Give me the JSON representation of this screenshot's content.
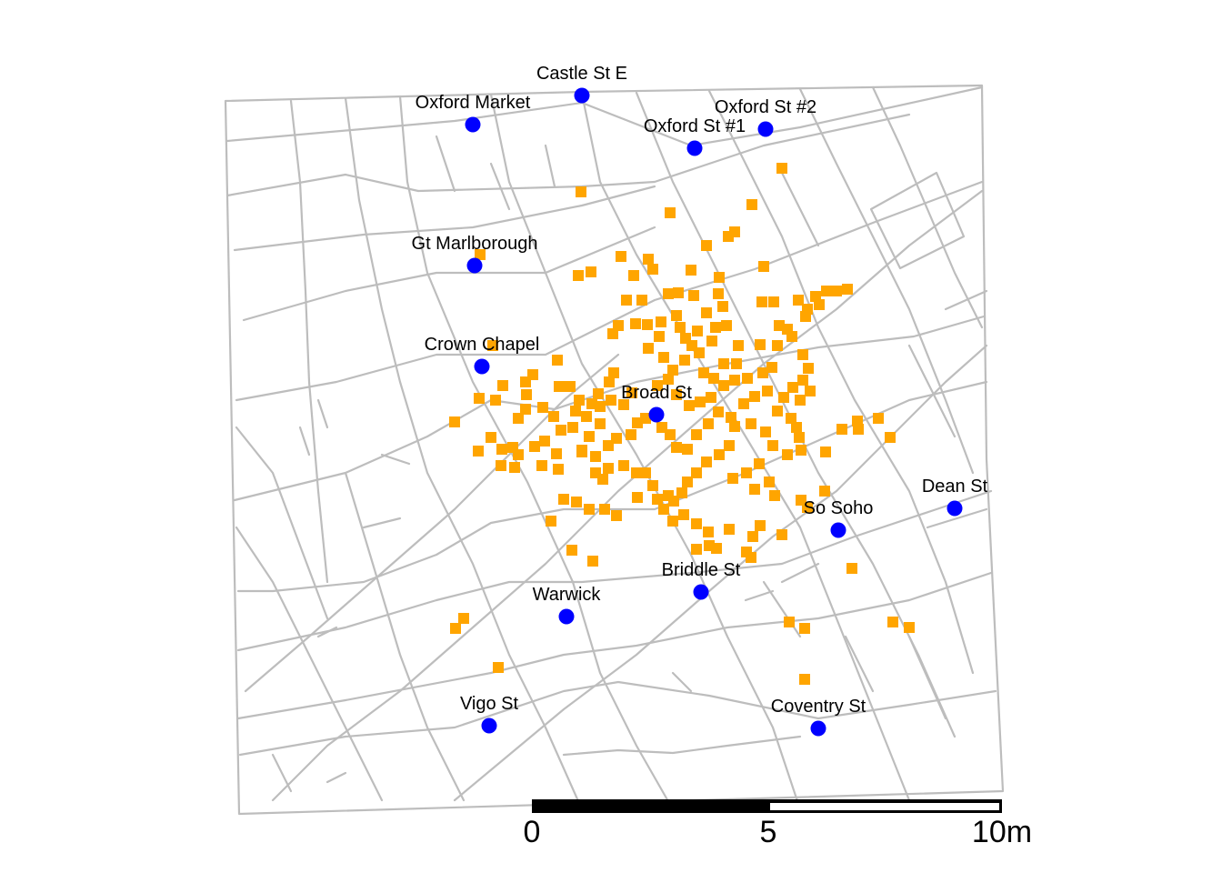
{
  "map": {
    "pumps": [
      {
        "name": "Castle St E"
      },
      {
        "name": "Oxford Market"
      },
      {
        "name": "Oxford St #2"
      },
      {
        "name": "Oxford St #1"
      },
      {
        "name": "Gt Marlborough"
      },
      {
        "name": "Crown Chapel"
      },
      {
        "name": "Broad St"
      },
      {
        "name": "Dean St"
      },
      {
        "name": "So Soho"
      },
      {
        "name": "Briddle St"
      },
      {
        "name": "Warwick"
      },
      {
        "name": "Vigo St"
      },
      {
        "name": "Coventry St"
      }
    ],
    "scale_bar": {
      "labels": [
        "0",
        "5",
        "10m"
      ]
    },
    "colors": {
      "pump": "#0000ff",
      "death": "#ffa500",
      "street": "#bdbdbd"
    }
  }
}
